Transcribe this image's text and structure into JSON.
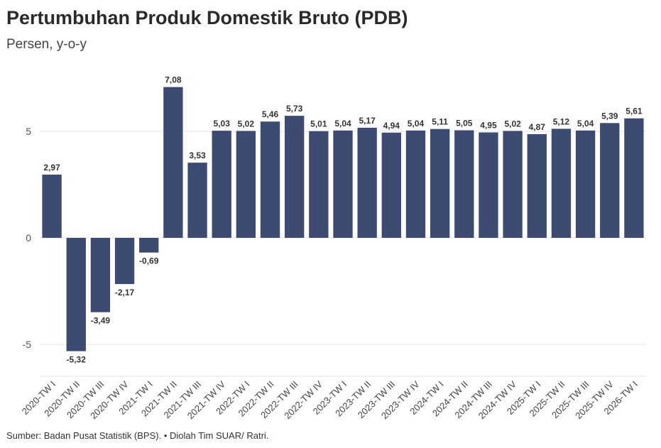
{
  "title": "Pertumbuhan Produk Domestik Bruto (PDB)",
  "subtitle": "Persen, y-o-y",
  "source": "Sumber: Badan Pusat Statistik (BPS). • Diolah Tim SUAR/ Ratri.",
  "colors": {
    "bar": "#3d4b73",
    "grid": "#e6e6e6",
    "text": "#333333"
  },
  "chart_data": {
    "type": "bar",
    "title": "Pertumbuhan Produk Domestik Bruto (PDB)",
    "ylabel": "Persen, y-o-y",
    "xlabel": "",
    "ylim": [
      -6,
      7.5
    ],
    "yticks": [
      -5,
      0,
      5
    ],
    "ytick_labels": [
      "-5",
      "0",
      "5"
    ],
    "grid": true,
    "categories": [
      "2020-TW I",
      "2020-TW II",
      "2020-TW III",
      "2020-TW IV",
      "2021-TW I",
      "2021-TW II",
      "2021-TW III",
      "2021-TW IV",
      "2022-TW I",
      "2022-TW II",
      "2022-TW III",
      "2022-TW IV",
      "2023-TW I",
      "2023-TW II",
      "2023-TW III",
      "2023-TW IV",
      "2024-TW I",
      "2024-TW II",
      "2024-TW III",
      "2024-TW IV",
      "2025-TW I",
      "2025-TW II",
      "2025-TW III",
      "2025-TW IV",
      "2026-TW I"
    ],
    "values": [
      2.97,
      -5.32,
      -3.49,
      -2.17,
      -0.69,
      7.08,
      3.53,
      5.03,
      5.02,
      5.46,
      5.73,
      5.01,
      5.04,
      5.17,
      4.94,
      5.04,
      5.11,
      5.05,
      4.95,
      5.02,
      4.87,
      5.12,
      5.04,
      5.39,
      5.61
    ],
    "value_labels": [
      "2,97",
      "-5,32",
      "-3,49",
      "-2,17",
      "-0,69",
      "7,08",
      "3,53",
      "5,03",
      "5,02",
      "5,46",
      "5,73",
      "5,01",
      "5,04",
      "5,17",
      "4,94",
      "5,04",
      "5,11",
      "5,05",
      "4,95",
      "5,02",
      "4,87",
      "5,12",
      "5,04",
      "5,39",
      "5,61"
    ]
  }
}
